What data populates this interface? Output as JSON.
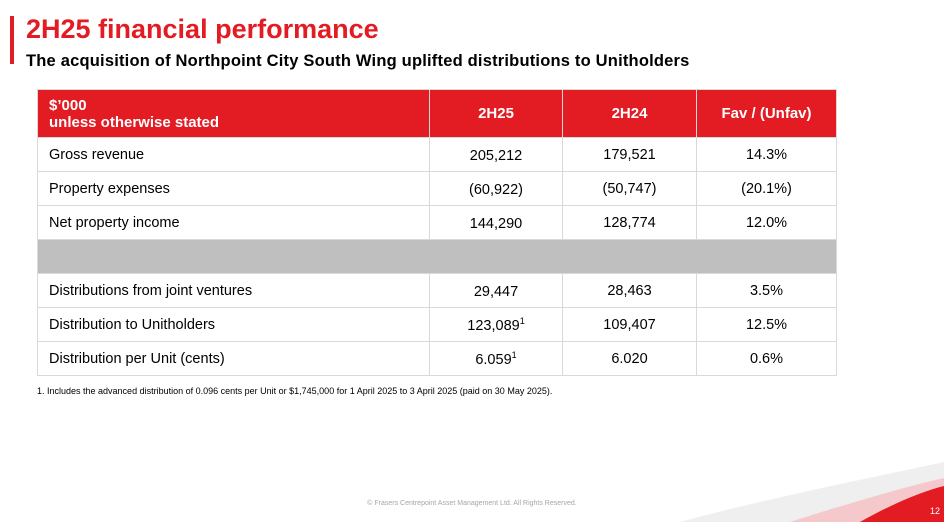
{
  "slide": {
    "title": "2H25 financial performance",
    "subtitle": "The acquisition of Northpoint City South Wing uplifted distributions to Unitholders",
    "footnote": "1. Includes the advanced distribution of 0.096 cents per Unit or $1,745,000 for 1 April 2025 to 3 April 2025 (paid on 30 May 2025).",
    "copyright": "© Frasers Centrepoint Asset Management Ltd. All Rights Reserved.",
    "page_number": "12",
    "accent_color": "#e31b23"
  },
  "table": {
    "header": {
      "unit_line1": "$’000",
      "unit_line2": "unless otherwise stated",
      "col_2h25": "2H25",
      "col_2h24": "2H24",
      "col_fav": "Fav / (Unfav)"
    },
    "rows": [
      {
        "label": "Gross revenue",
        "v2h25": "205,212",
        "v2h25_sup": "",
        "v2h24": "179,521",
        "fav": "14.3%"
      },
      {
        "label": "Property expenses",
        "v2h25": "(60,922)",
        "v2h25_sup": "",
        "v2h24": "(50,747)",
        "fav": "(20.1%)"
      },
      {
        "label": "Net property income",
        "v2h25": "144,290",
        "v2h25_sup": "",
        "v2h24": "128,774",
        "fav": "12.0%"
      },
      {
        "label": "Distributions from joint ventures",
        "v2h25": "29,447",
        "v2h25_sup": "",
        "v2h24": "28,463",
        "fav": "3.5%"
      },
      {
        "label": "Distribution to Unitholders",
        "v2h25": "123,089",
        "v2h25_sup": "1",
        "v2h24": "109,407",
        "fav": "12.5%"
      },
      {
        "label": "Distribution per Unit (cents)",
        "v2h25": "6.059",
        "v2h25_sup": "1",
        "v2h24": "6.020",
        "fav": "0.6%"
      }
    ]
  }
}
